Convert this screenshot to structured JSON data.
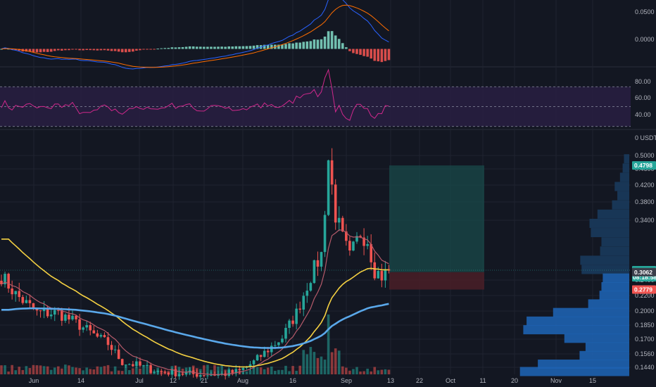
{
  "chart_data": {
    "type": "candlestick",
    "colors": {
      "background": "#131722",
      "grid": "#1f2330",
      "up": "#26a69a",
      "down": "#ef5350",
      "macd_line": "#2962ff",
      "signal_line": "#ff6d00",
      "rsi_line": "#d0288c",
      "rsi_band": "#2a1f45",
      "rsi_guide": "#8a8fa0",
      "ema_short": "#b55a6a",
      "ema_mid": "#f5d142",
      "ema_long": "#5aa8ea",
      "profile": "#1e62b0",
      "profile_dim": "#1a3a5c",
      "target_zone": "#1a4a4a",
      "stop_zone": "#4a1f27",
      "price_tag": "#26a69a",
      "stop_tag": "#ef5350",
      "entry_tag": "#3a3e4a"
    },
    "x_axis": {
      "tick_labels": [
        "Jun",
        "14",
        "Jul",
        "12",
        "21",
        "Aug",
        "16",
        "Sep",
        "13",
        "22",
        "Oct",
        "11",
        "20",
        "Nov",
        "15"
      ]
    },
    "panes": {
      "macd": {
        "tick_labels": [
          "0.0500",
          "0.0000"
        ],
        "ylim": [
          -0.022,
          0.06
        ]
      },
      "rsi": {
        "tick_labels": [
          "80.00",
          "60.00",
          "40.00"
        ],
        "levels": [
          70,
          50,
          30
        ],
        "ylim": [
          27,
          90
        ]
      },
      "price": {
        "unit": "USDT",
        "unit_prefix": "0",
        "tick_labels": [
          "0.5000",
          "0.4600",
          "0.4200",
          "0.3800",
          "0.3400",
          "0.2400",
          "0.2200",
          "0.2000",
          "0.1850",
          "0.1700",
          "0.1560",
          "0.1440"
        ],
        "current_price": "0.3094",
        "countdown": "08:18:58",
        "entry_price": "0.3062",
        "stop_price": "0.2779",
        "target_price": "0.4798",
        "ylim": [
          0.14,
          0.52
        ]
      }
    },
    "volume_profile": [
      {
        "price": 0.49,
        "volume": 8
      },
      {
        "price": 0.475,
        "volume": 10
      },
      {
        "price": 0.46,
        "volume": 14
      },
      {
        "price": 0.445,
        "volume": 22
      },
      {
        "price": 0.43,
        "volume": 18
      },
      {
        "price": 0.415,
        "volume": 26
      },
      {
        "price": 0.4,
        "volume": 48
      },
      {
        "price": 0.385,
        "volume": 60
      },
      {
        "price": 0.37,
        "volume": 58
      },
      {
        "price": 0.355,
        "volume": 42
      },
      {
        "price": 0.34,
        "volume": 44
      },
      {
        "price": 0.325,
        "volume": 74
      },
      {
        "price": 0.31,
        "volume": 72
      },
      {
        "price": 0.296,
        "volume": 40
      },
      {
        "price": 0.282,
        "volume": 42
      },
      {
        "price": 0.268,
        "volume": 45
      },
      {
        "price": 0.254,
        "volume": 62
      },
      {
        "price": 0.24,
        "volume": 115
      },
      {
        "price": 0.226,
        "volume": 155
      },
      {
        "price": 0.212,
        "volume": 160
      },
      {
        "price": 0.198,
        "volume": 98
      },
      {
        "price": 0.184,
        "volume": 66
      },
      {
        "price": 0.17,
        "volume": 75
      },
      {
        "price": 0.156,
        "volume": 138
      },
      {
        "price": 0.144,
        "volume": 165
      }
    ]
  }
}
